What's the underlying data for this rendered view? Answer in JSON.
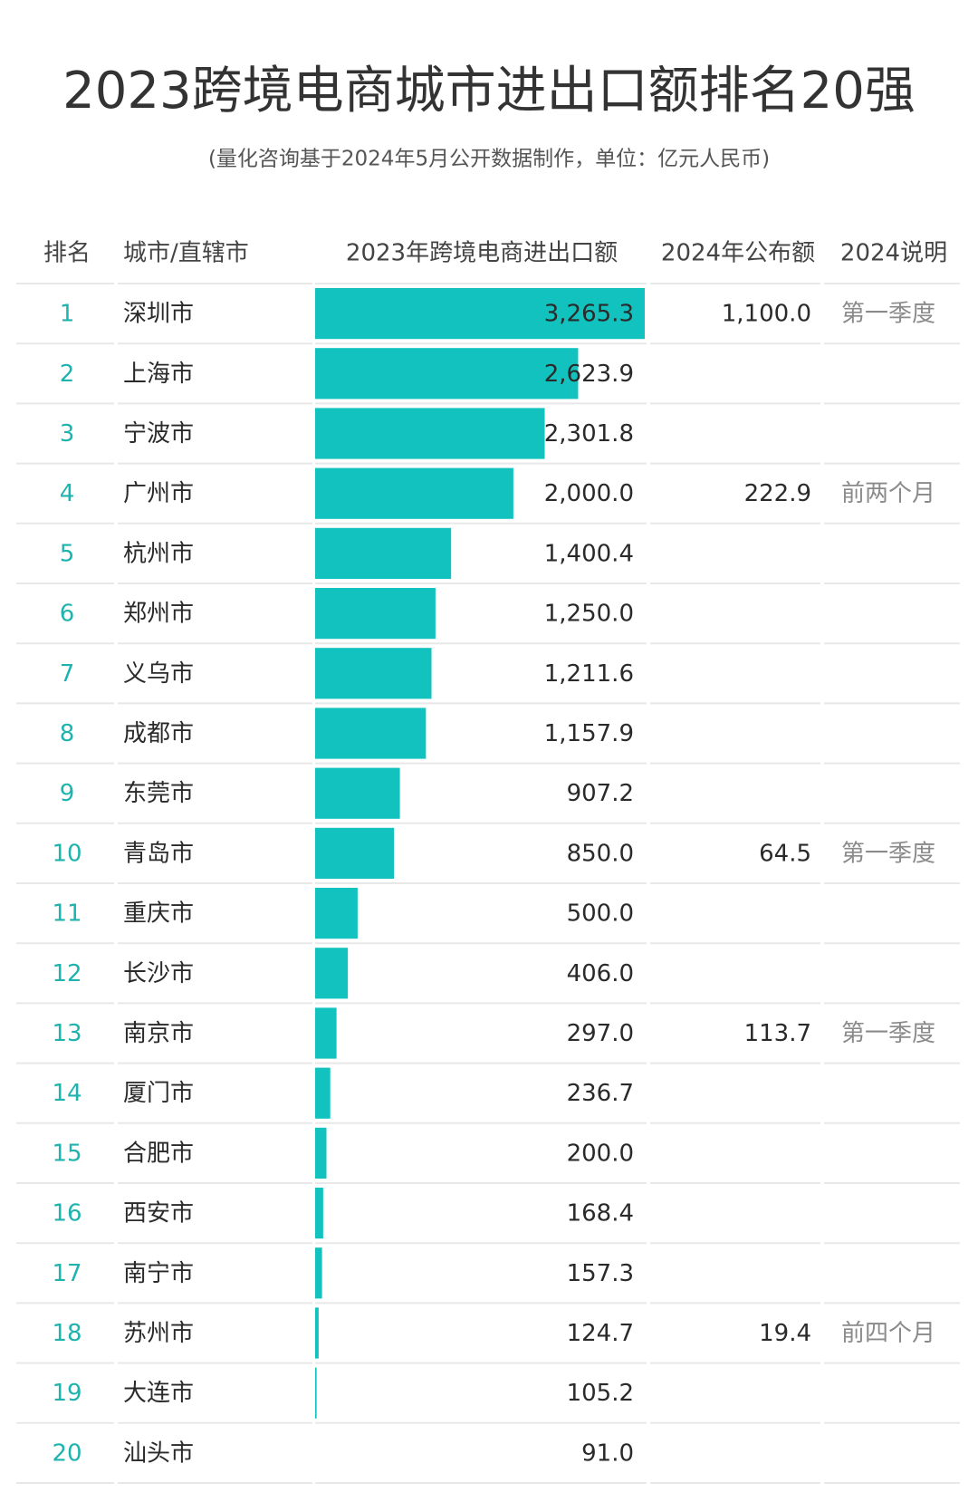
{
  "chart_data": {
    "type": "table-bar",
    "title": "2023跨境电商城市进出口额排名20强",
    "subtitle": "(量化咨询基于2024年5月公开数据制作，单位：亿元人民币)",
    "columns": [
      "排名",
      "城市/直辖市",
      "2023年跨境电商进出口额",
      "2024年公布额",
      "2024说明"
    ],
    "color": "#12c2bf",
    "xlim": [
      91.0,
      3265.3
    ],
    "ranks": [
      1,
      2,
      3,
      4,
      5,
      6,
      7,
      8,
      9,
      10,
      11,
      12,
      13,
      14,
      15,
      16,
      17,
      18,
      19,
      20
    ],
    "categories": [
      "深圳市",
      "上海市",
      "宁波市",
      "广州市",
      "杭州市",
      "郑州市",
      "义乌市",
      "成都市",
      "东莞市",
      "青岛市",
      "重庆市",
      "长沙市",
      "南京市",
      "厦门市",
      "合肥市",
      "西安市",
      "南宁市",
      "苏州市",
      "大连市",
      "汕头市"
    ],
    "values": [
      3265.3,
      2623.9,
      2301.8,
      2000.0,
      1400.4,
      1250.0,
      1211.6,
      1157.9,
      907.2,
      850.0,
      500.0,
      406.0,
      297.0,
      236.7,
      200.0,
      168.4,
      157.3,
      124.7,
      105.2,
      91.0
    ],
    "value_labels": [
      "3,265.3",
      "2,623.9",
      "2,301.8",
      "2,000.0",
      "1,400.4",
      "1,250.0",
      "1,211.6",
      "1,157.9",
      "907.2",
      "850.0",
      "500.0",
      "406.0",
      "297.0",
      "236.7",
      "200.0",
      "168.4",
      "157.3",
      "124.7",
      "105.2",
      "91.0"
    ],
    "published_2024": [
      "1,100.0",
      null,
      null,
      "222.9",
      null,
      null,
      null,
      null,
      null,
      "64.5",
      null,
      null,
      "113.7",
      null,
      null,
      null,
      null,
      "19.4",
      null,
      null
    ],
    "notes_2024": [
      "第一季度",
      null,
      null,
      "前两个月",
      null,
      null,
      null,
      null,
      null,
      "第一季度",
      null,
      null,
      "第一季度",
      null,
      null,
      null,
      null,
      "前四个月",
      null,
      null
    ]
  }
}
